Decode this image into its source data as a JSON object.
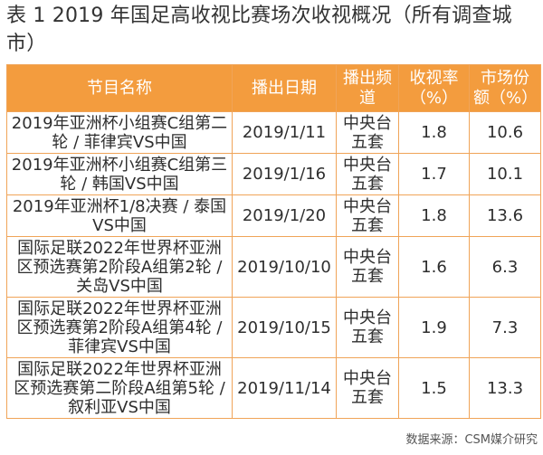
{
  "caption": "表 1 2019 年国足高收视比赛场次收视概况（所有调查城市）",
  "table": {
    "headers": [
      "节目名称",
      "播出日期",
      "播出频道",
      "收视率（%）",
      "市场份额（%）"
    ],
    "rows": [
      {
        "name": "2019年亚洲杯小组赛C组第二轮 / 菲律宾VS中国",
        "date": "2019/1/11",
        "channel": "中央台五套",
        "rating": "1.8",
        "share": "10.6"
      },
      {
        "name": "2019年亚洲杯小组赛C组第三轮 / 韩国VS中国",
        "date": "2019/1/16",
        "channel": "中央台五套",
        "rating": "1.7",
        "share": "10.1"
      },
      {
        "name": "2019年亚洲杯1/8决赛 / 泰国VS中国",
        "date": "2019/1/20",
        "channel": "中央台五套",
        "rating": "1.8",
        "share": "13.6"
      },
      {
        "name": "国际足联2022年世界杯亚洲区预选赛第2阶段A组第2轮 / 关岛VS中国",
        "date": "2019/10/10",
        "channel": "中央台五套",
        "rating": "1.6",
        "share": "6.3"
      },
      {
        "name": "国际足联2022年世界杯亚洲区预选赛第2阶段A组第4轮 / 菲律宾VS中国",
        "date": "2019/10/15",
        "channel": "中央台五套",
        "rating": "1.9",
        "share": "7.3"
      },
      {
        "name": "国际足联2022年世界杯亚洲区预选赛第二阶段A组第5轮 / 叙利亚VS中国",
        "date": "2019/11/14",
        "channel": "中央台五套",
        "rating": "1.5",
        "share": "13.3"
      }
    ]
  },
  "source": "数据来源：CSM媒介研究",
  "colors": {
    "header_bg": "#f39c3e",
    "border": "#f0a458",
    "header_text": "#ffffff"
  }
}
